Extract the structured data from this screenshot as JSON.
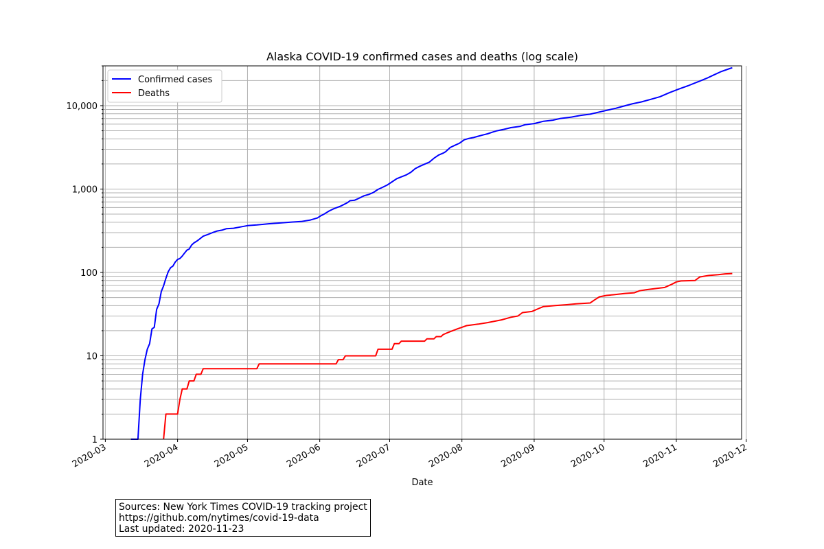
{
  "chart_data": {
    "type": "line",
    "title": "Alaska COVID-19 confirmed cases and deaths (log scale)",
    "xlabel": "Date",
    "ylabel": "",
    "yscale": "log",
    "ylim": [
      1,
      30000
    ],
    "xlim": [
      "2020-02-29",
      "2020-11-29"
    ],
    "grid": true,
    "legend_position": "top-left",
    "x_tick_labels": [
      "2020-03",
      "2020-04",
      "2020-05",
      "2020-06",
      "2020-07",
      "2020-08",
      "2020-09",
      "2020-10",
      "2020-11",
      "2020-12"
    ],
    "y_tick_labels": [
      "1",
      "10",
      "100",
      "1,000",
      "10,000"
    ],
    "series": [
      {
        "name": "Confirmed cases",
        "color": "#0000ff",
        "points": [
          [
            "2020-03-12",
            1
          ],
          [
            "2020-03-15",
            1
          ],
          [
            "2020-03-16",
            3
          ],
          [
            "2020-03-17",
            6
          ],
          [
            "2020-03-18",
            9
          ],
          [
            "2020-03-19",
            12
          ],
          [
            "2020-03-20",
            14
          ],
          [
            "2020-03-21",
            21
          ],
          [
            "2020-03-22",
            22
          ],
          [
            "2020-03-23",
            36
          ],
          [
            "2020-03-24",
            42
          ],
          [
            "2020-03-25",
            59
          ],
          [
            "2020-03-26",
            69
          ],
          [
            "2020-03-27",
            85
          ],
          [
            "2020-03-28",
            102
          ],
          [
            "2020-03-29",
            114
          ],
          [
            "2020-03-30",
            119
          ],
          [
            "2020-03-31",
            133
          ],
          [
            "2020-04-01",
            143
          ],
          [
            "2020-04-02",
            147
          ],
          [
            "2020-04-03",
            157
          ],
          [
            "2020-04-04",
            171
          ],
          [
            "2020-04-05",
            185
          ],
          [
            "2020-04-06",
            191
          ],
          [
            "2020-04-07",
            213
          ],
          [
            "2020-04-08",
            226
          ],
          [
            "2020-04-09",
            235
          ],
          [
            "2020-04-10",
            246
          ],
          [
            "2020-04-12",
            272
          ],
          [
            "2020-04-14",
            285
          ],
          [
            "2020-04-16",
            300
          ],
          [
            "2020-04-18",
            314
          ],
          [
            "2020-04-20",
            321
          ],
          [
            "2020-04-22",
            335
          ],
          [
            "2020-04-25",
            339
          ],
          [
            "2020-04-28",
            351
          ],
          [
            "2020-05-01",
            364
          ],
          [
            "2020-05-05",
            371
          ],
          [
            "2020-05-10",
            383
          ],
          [
            "2020-05-15",
            392
          ],
          [
            "2020-05-20",
            402
          ],
          [
            "2020-05-24",
            408
          ],
          [
            "2020-05-28",
            425
          ],
          [
            "2020-05-31",
            450
          ],
          [
            "2020-06-01",
            470
          ],
          [
            "2020-06-03",
            503
          ],
          [
            "2020-06-05",
            545
          ],
          [
            "2020-06-07",
            580
          ],
          [
            "2020-06-10",
            625
          ],
          [
            "2020-06-13",
            690
          ],
          [
            "2020-06-14",
            725
          ],
          [
            "2020-06-16",
            735
          ],
          [
            "2020-06-18",
            780
          ],
          [
            "2020-06-20",
            830
          ],
          [
            "2020-06-22",
            860
          ],
          [
            "2020-06-24",
            910
          ],
          [
            "2020-06-26",
            990
          ],
          [
            "2020-06-28",
            1050
          ],
          [
            "2020-06-30",
            1120
          ],
          [
            "2020-07-02",
            1220
          ],
          [
            "2020-07-04",
            1330
          ],
          [
            "2020-07-06",
            1400
          ],
          [
            "2020-07-08",
            1470
          ],
          [
            "2020-07-10",
            1580
          ],
          [
            "2020-07-12",
            1760
          ],
          [
            "2020-07-14",
            1880
          ],
          [
            "2020-07-16",
            1990
          ],
          [
            "2020-07-18",
            2100
          ],
          [
            "2020-07-20",
            2340
          ],
          [
            "2020-07-22",
            2560
          ],
          [
            "2020-07-24",
            2700
          ],
          [
            "2020-07-25",
            2800
          ],
          [
            "2020-07-27",
            3150
          ],
          [
            "2020-07-29",
            3350
          ],
          [
            "2020-07-31",
            3550
          ],
          [
            "2020-08-02",
            3900
          ],
          [
            "2020-08-04",
            4050
          ],
          [
            "2020-08-06",
            4150
          ],
          [
            "2020-08-08",
            4300
          ],
          [
            "2020-08-10",
            4450
          ],
          [
            "2020-08-12",
            4600
          ],
          [
            "2020-08-14",
            4800
          ],
          [
            "2020-08-16",
            5000
          ],
          [
            "2020-08-19",
            5200
          ],
          [
            "2020-08-22",
            5450
          ],
          [
            "2020-08-26",
            5650
          ],
          [
            "2020-08-28",
            5900
          ],
          [
            "2020-09-01",
            6100
          ],
          [
            "2020-09-05",
            6500
          ],
          [
            "2020-09-09",
            6700
          ],
          [
            "2020-09-12",
            7000
          ],
          [
            "2020-09-17",
            7300
          ],
          [
            "2020-09-21",
            7650
          ],
          [
            "2020-09-25",
            7900
          ],
          [
            "2020-09-29",
            8400
          ],
          [
            "2020-10-03",
            8900
          ],
          [
            "2020-10-06",
            9300
          ],
          [
            "2020-10-09",
            9800
          ],
          [
            "2020-10-13",
            10500
          ],
          [
            "2020-10-17",
            11100
          ],
          [
            "2020-10-21",
            11900
          ],
          [
            "2020-10-25",
            12800
          ],
          [
            "2020-10-29",
            14300
          ],
          [
            "2020-11-02",
            15800
          ],
          [
            "2020-11-06",
            17300
          ],
          [
            "2020-11-10",
            19200
          ],
          [
            "2020-11-14",
            21300
          ],
          [
            "2020-11-17",
            23300
          ],
          [
            "2020-11-20",
            25500
          ],
          [
            "2020-11-23",
            27300
          ],
          [
            "2020-11-25",
            28500
          ]
        ]
      },
      {
        "name": "Deaths",
        "color": "#ff0000",
        "points": [
          [
            "2020-03-26",
            1
          ],
          [
            "2020-03-27",
            2
          ],
          [
            "2020-04-01",
            2
          ],
          [
            "2020-04-02",
            3
          ],
          [
            "2020-04-03",
            4
          ],
          [
            "2020-04-05",
            4
          ],
          [
            "2020-04-06",
            5
          ],
          [
            "2020-04-08",
            5
          ],
          [
            "2020-04-09",
            6
          ],
          [
            "2020-04-11",
            6
          ],
          [
            "2020-04-12",
            7
          ],
          [
            "2020-05-05",
            7
          ],
          [
            "2020-05-06",
            8
          ],
          [
            "2020-06-08",
            8
          ],
          [
            "2020-06-09",
            9
          ],
          [
            "2020-06-11",
            9
          ],
          [
            "2020-06-12",
            10
          ],
          [
            "2020-06-25",
            10
          ],
          [
            "2020-06-26",
            12
          ],
          [
            "2020-07-02",
            12
          ],
          [
            "2020-07-03",
            14
          ],
          [
            "2020-07-05",
            14
          ],
          [
            "2020-07-06",
            15
          ],
          [
            "2020-07-16",
            15
          ],
          [
            "2020-07-17",
            16
          ],
          [
            "2020-07-20",
            16
          ],
          [
            "2020-07-21",
            17
          ],
          [
            "2020-07-23",
            17
          ],
          [
            "2020-07-24",
            18
          ],
          [
            "2020-07-26",
            19
          ],
          [
            "2020-07-28",
            20
          ],
          [
            "2020-07-30",
            21
          ],
          [
            "2020-08-01",
            22
          ],
          [
            "2020-08-03",
            23
          ],
          [
            "2020-08-08",
            24
          ],
          [
            "2020-08-12",
            25
          ],
          [
            "2020-08-15",
            26
          ],
          [
            "2020-08-18",
            27
          ],
          [
            "2020-08-22",
            29
          ],
          [
            "2020-08-25",
            30
          ],
          [
            "2020-08-27",
            33
          ],
          [
            "2020-08-31",
            34
          ],
          [
            "2020-09-01",
            35
          ],
          [
            "2020-09-03",
            37
          ],
          [
            "2020-09-05",
            39
          ],
          [
            "2020-09-10",
            40
          ],
          [
            "2020-09-15",
            41
          ],
          [
            "2020-09-19",
            42
          ],
          [
            "2020-09-25",
            43
          ],
          [
            "2020-09-27",
            47
          ],
          [
            "2020-09-29",
            51
          ],
          [
            "2020-10-02",
            53
          ],
          [
            "2020-10-05",
            54
          ],
          [
            "2020-10-10",
            56
          ],
          [
            "2020-10-14",
            57
          ],
          [
            "2020-10-16",
            60
          ],
          [
            "2020-10-19",
            62
          ],
          [
            "2020-10-23",
            64
          ],
          [
            "2020-10-27",
            66
          ],
          [
            "2020-10-30",
            72
          ],
          [
            "2020-11-01",
            77
          ],
          [
            "2020-11-03",
            79
          ],
          [
            "2020-11-09",
            80
          ],
          [
            "2020-11-11",
            88
          ],
          [
            "2020-11-13",
            90
          ],
          [
            "2020-11-15",
            92
          ],
          [
            "2020-11-19",
            94
          ],
          [
            "2020-11-22",
            96
          ],
          [
            "2020-11-25",
            97
          ]
        ]
      }
    ]
  },
  "source_box": {
    "line1": "Sources: New York Times COVID-19 tracking project",
    "line2": "https://github.com/nytimes/covid-19-data",
    "line3": "Last updated: 2020-11-23"
  }
}
